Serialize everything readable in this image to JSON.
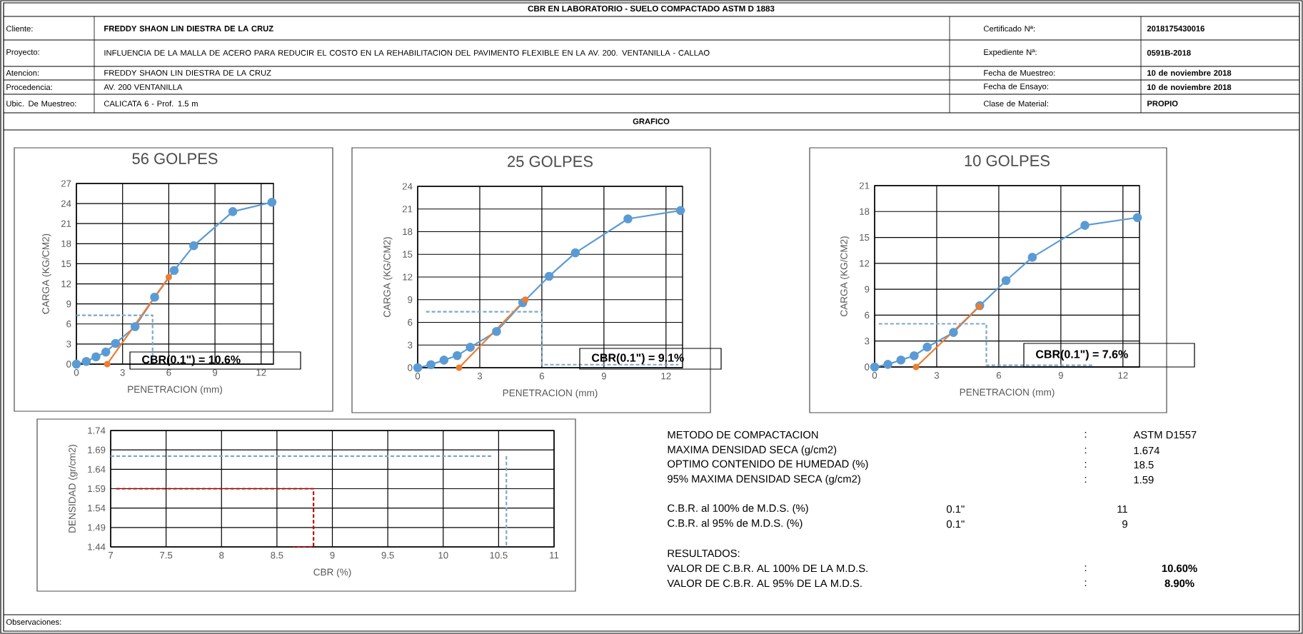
{
  "chart_data": [
    {
      "type": "other",
      "title": "CBR EN LABORATORIO - SUELO COMPACTADO ASTM D 1883",
      "annotations": [
        "Cliente:",
        "FREDDY SHAON LIN DIESTRA DE LA CRUZ",
        "Certificado Nª:",
        "2018175430016",
        "Proyecto:",
        "INFLUENCIA DE LA MALLA DE ACERO PARA REDUCIR EL COSTO EN LA REHABILITACION DEL PAVIMENTO FLEXIBLE EN LA AV. 200. VENTANILLA - CALLAO",
        "Expediente Nª:",
        "0591B-2018",
        "Atencion:",
        "FREDDY SHAON LIN DIESTRA DE LA CRUZ",
        "Fecha de Muestreo:",
        "10 de noviembre 2018",
        "Procedencia:",
        "AV. 200 VENTANILLA",
        "Fecha de Ensayo:",
        "10 de noviembre 2018",
        "Ubic. De Muestreo:",
        "CALICATA 6 - Prof. 1.5 m",
        "Clase de Material:",
        "PROPIO",
        "GRAFICO",
        "Observaciones:"
      ]
    },
    {
      "type": "line",
      "title": "56 GOLPES",
      "xlabel": "PENETRACION (mm)",
      "ylabel": "CARGA (KG/CM2)",
      "xlim": [
        0,
        12.8
      ],
      "ylim": [
        0,
        27
      ],
      "xticks": [
        0,
        3,
        6,
        9,
        12
      ],
      "yticks": [
        0,
        3,
        6,
        9,
        12,
        15,
        18,
        21,
        24,
        27
      ],
      "grid": true,
      "annotations": [
        "CBR(0.1\") =  10.6%"
      ],
      "series": [
        {
          "color": "#5b9bd5",
          "marker": "circle",
          "x": [
            0,
            0.64,
            1.27,
            1.91,
            2.54,
            3.81,
            5.08,
            6.35,
            7.62,
            10.16,
            12.7
          ],
          "values": [
            0,
            0.4,
            1.1,
            1.8,
            3.1,
            5.6,
            10.0,
            14.0,
            17.7,
            22.8,
            24.2
          ]
        },
        {
          "color": "#ed7d31",
          "marker": "circle",
          "x": [
            2,
            6
          ],
          "values": [
            0,
            13
          ]
        },
        {
          "color": "#7fa7c9",
          "marker": "none",
          "line_style": "dashed",
          "x": [
            0,
            4.95,
            4.95
          ],
          "values": [
            7.3,
            7.3,
            0
          ]
        }
      ]
    },
    {
      "type": "line",
      "title": "25 GOLPES",
      "xlabel": "PENETRACION (mm)",
      "ylabel": "CARGA (KG/CM2)",
      "xlim": [
        0,
        12.8
      ],
      "ylim": [
        0,
        24
      ],
      "xticks": [
        0,
        3,
        6,
        9,
        12
      ],
      "yticks": [
        0,
        3,
        6,
        9,
        12,
        15,
        18,
        21,
        24
      ],
      "grid": true,
      "annotations": [
        "CBR(0.1\") =  9.1%"
      ],
      "series": [
        {
          "color": "#5b9bd5",
          "marker": "circle",
          "x": [
            0,
            0.64,
            1.27,
            1.91,
            2.54,
            3.81,
            5.08,
            6.35,
            7.62,
            10.16,
            12.7
          ],
          "values": [
            0,
            0.4,
            1.0,
            1.6,
            2.7,
            4.8,
            8.6,
            12.1,
            15.2,
            19.7,
            20.8
          ]
        },
        {
          "color": "#ed7d31",
          "marker": "circle",
          "x": [
            2,
            5.2
          ],
          "values": [
            0,
            9.0
          ]
        },
        {
          "color": "#7fa7c9",
          "marker": "none",
          "line_style": "dashed",
          "x": [
            0.4,
            6.0,
            6.0,
            12.6
          ],
          "values": [
            7.4,
            7.4,
            0.4,
            0.4
          ]
        }
      ]
    },
    {
      "type": "line",
      "title": "10 GOLPES",
      "xlabel": "PENETRACION (mm)",
      "ylabel": "CARGA (KG/CM2)",
      "xlim": [
        0,
        12.8
      ],
      "ylim": [
        0,
        21
      ],
      "xticks": [
        0,
        3,
        6,
        9,
        12
      ],
      "yticks": [
        0,
        3,
        6,
        9,
        12,
        15,
        18,
        21
      ],
      "grid": true,
      "annotations": [
        "CBR(0.1\") =  7.6%"
      ],
      "series": [
        {
          "color": "#5b9bd5",
          "marker": "circle",
          "x": [
            0,
            0.64,
            1.27,
            1.91,
            2.54,
            3.81,
            5.08,
            6.35,
            7.62,
            10.16,
            12.7
          ],
          "values": [
            0,
            0.3,
            0.8,
            1.3,
            2.3,
            4.0,
            7.1,
            10.0,
            12.7,
            16.4,
            17.3
          ]
        },
        {
          "color": "#ed7d31",
          "marker": "circle",
          "x": [
            2,
            5.06
          ],
          "values": [
            0,
            7.0
          ]
        },
        {
          "color": "#7fa7c9",
          "marker": "none",
          "line_style": "dashed",
          "x": [
            0.2,
            5.4,
            5.4,
            10.6
          ],
          "values": [
            5.0,
            5.0,
            0.2,
            0.2
          ]
        }
      ]
    },
    {
      "type": "line",
      "xlabel": "CBR (%)",
      "ylabel": "DENSIDAD (gr/cm2)",
      "xlim": [
        7,
        11
      ],
      "ylim": [
        1.44,
        1.74
      ],
      "xticks": [
        7,
        7.5,
        8,
        8.5,
        9,
        9.5,
        10,
        10.5,
        11
      ],
      "yticks": [
        1.44,
        1.49,
        1.54,
        1.59,
        1.64,
        1.69,
        1.74
      ],
      "grid": true,
      "series": [
        {
          "color": "#7fa7c9",
          "marker": "none",
          "line_style": "dashed",
          "x": [
            7,
            10.45
          ],
          "values": [
            1.674,
            1.674
          ]
        },
        {
          "color": "#7fa7c9",
          "marker": "none",
          "line_style": "dashed",
          "x": [
            10.57,
            10.57
          ],
          "values": [
            1.674,
            1.44
          ]
        },
        {
          "color": "#c00000",
          "marker": "none",
          "line_style": "dashed",
          "x": [
            7.05,
            8.83,
            8.83,
            8.65
          ],
          "values": [
            1.59,
            1.59,
            1.44,
            1.44
          ]
        }
      ]
    },
    {
      "type": "other",
      "annotations": [
        "METODO DE COMPACTACION",
        ":",
        "ASTM D1557",
        "MAXIMA DENSIDAD SECA (g/cm2)",
        ":",
        "1.674",
        "OPTIMO CONTENIDO DE HUMEDAD (%)",
        ":",
        "18.5",
        "95% MAXIMA DENSIDAD SECA (g/cm2)",
        ":",
        "1.59",
        "C.B.R. al 100% de M.D.S. (%)",
        "0.1\"",
        "11",
        "C.B.R. al 95% de M.D.S. (%)",
        "0.1\"",
        "9",
        "RESULTADOS:",
        "VALOR DE C.B.R. AL 100% DE LA M.D.S.",
        ":",
        "10.60%",
        "VALOR DE C.B.R. AL 95% DE LA M.D.S.",
        ":",
        "8.90%"
      ]
    }
  ]
}
